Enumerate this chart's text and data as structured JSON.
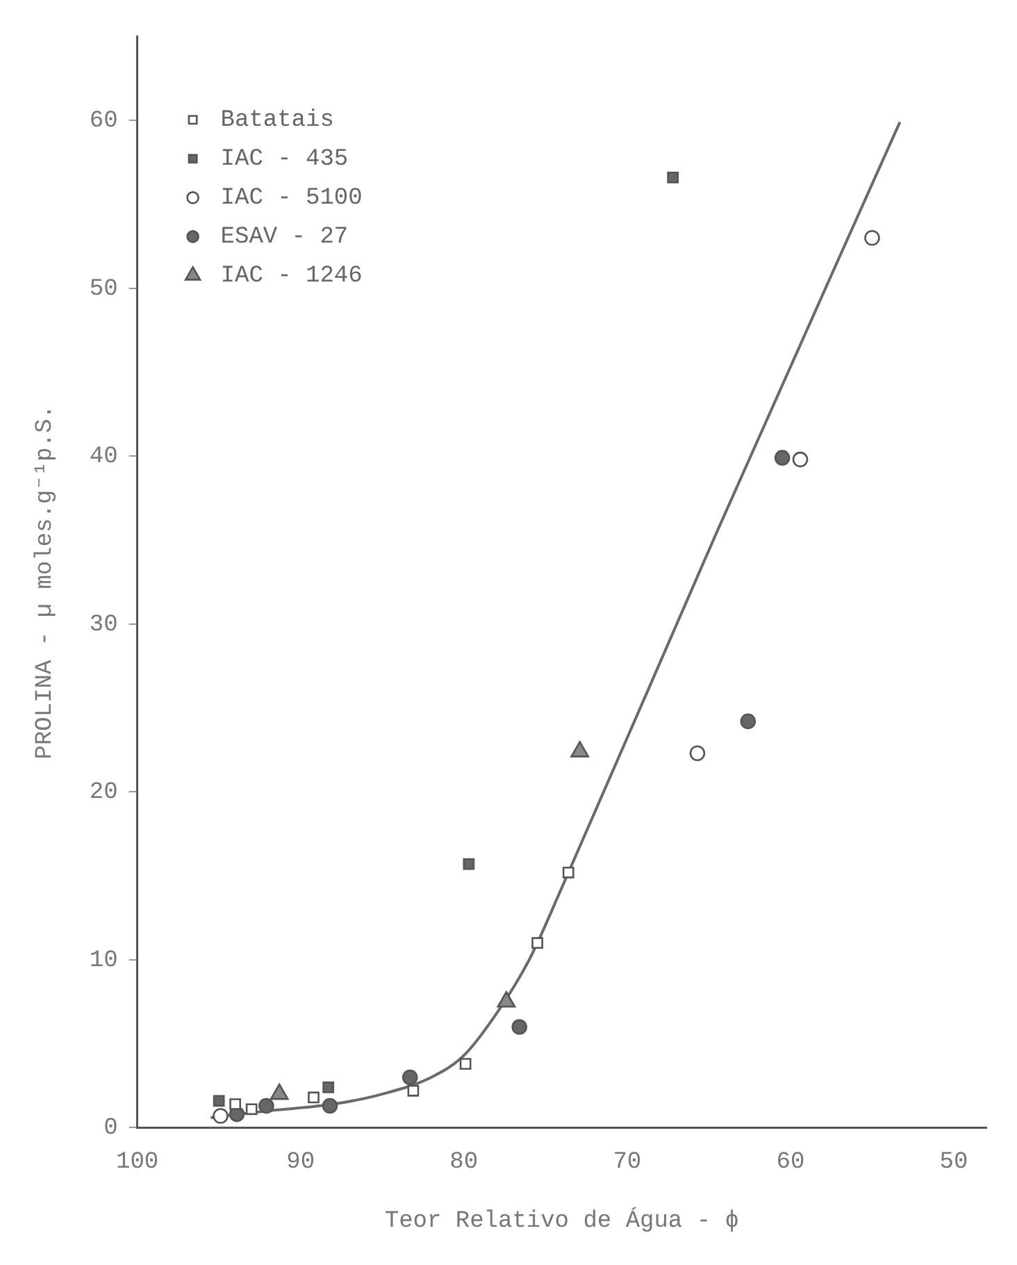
{
  "chart_data": {
    "type": "scatter",
    "xlabel": "Teor Relativo de Água - ϕ",
    "ylabel": "PROLINA - µ moles.g⁻¹p.S.",
    "xlim": [
      100,
      48
    ],
    "ylim": [
      0,
      65
    ],
    "xticks": [
      100,
      90,
      80,
      70,
      60,
      50
    ],
    "yticks": [
      0,
      10,
      20,
      30,
      40,
      50,
      60
    ],
    "grid": false,
    "legend": "top left",
    "series": [
      {
        "name": "Batatais",
        "color": "#ffffff",
        "marker": "square",
        "x": [
          94.0,
          93.0,
          89.2,
          83.1,
          79.9,
          75.5,
          73.6
        ],
        "values": [
          1.4,
          1.1,
          1.8,
          2.2,
          3.8,
          11.0,
          15.2
        ]
      },
      {
        "name": "IAC - 435",
        "color": "#666666",
        "marker": "square",
        "x": [
          95.0,
          88.3,
          79.7,
          67.2
        ],
        "values": [
          1.6,
          2.4,
          15.7,
          56.6
        ]
      },
      {
        "name": "IAC - 5100",
        "color": "#ffffff",
        "marker": "circle",
        "x": [
          94.9,
          65.7,
          59.4,
          55.0
        ],
        "values": [
          0.7,
          22.3,
          39.8,
          53.0
        ]
      },
      {
        "name": "ESAV - 27",
        "color": "#666666",
        "marker": "circle",
        "x": [
          93.9,
          92.1,
          88.2,
          83.3,
          76.6,
          62.6,
          60.5
        ],
        "values": [
          0.8,
          1.3,
          1.3,
          3.0,
          6.0,
          24.2,
          39.9
        ]
      },
      {
        "name": "IAC - 1246",
        "color": "#888888",
        "marker": "triangle",
        "x": [
          91.3,
          77.4,
          72.9
        ],
        "values": [
          2.0,
          7.5,
          22.4
        ]
      },
      {
        "type": "line",
        "color": "#6a6a6a",
        "marker": "none",
        "line_style": "solid",
        "x": [
          95.5,
          92,
          88,
          85,
          82,
          80,
          78,
          76,
          74,
          64.5,
          53.3
        ],
        "values": [
          0.6,
          1.0,
          1.4,
          2.0,
          3.0,
          4.3,
          6.8,
          10.0,
          14.3,
          35.5,
          59.9
        ]
      }
    ]
  }
}
